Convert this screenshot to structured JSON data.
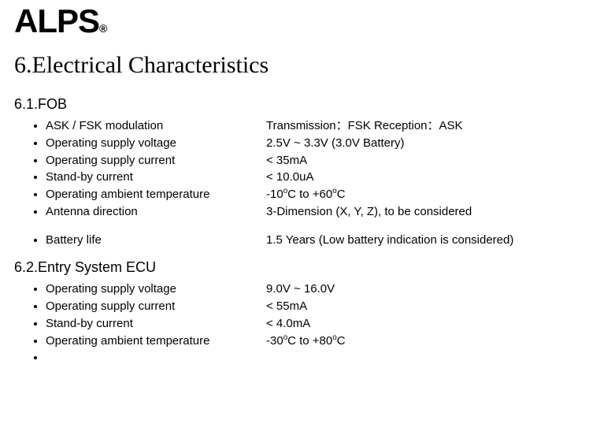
{
  "logo": {
    "text": "ALPS",
    "registered": "®"
  },
  "title": "6.Electrical Characteristics",
  "sections": [
    {
      "heading": "6.1.FOB",
      "items": [
        {
          "label": "ASK / FSK modulation",
          "value_pre": " Transmission：FSK  Reception：ASK",
          "gap": false,
          "temp": false
        },
        {
          "label": "Operating supply voltage",
          "value_pre": "2.5V ~ 3.3V (3.0V Battery)",
          "gap": false,
          "temp": false
        },
        {
          "label": "Operating supply current",
          "value_pre": "< 35mA",
          "gap": false,
          "temp": false
        },
        {
          "label": "Stand-by current",
          "value_pre": "< 10.0uA",
          "gap": false,
          "temp": false
        },
        {
          "label": "Operating ambient temperature",
          "value_pre": "-10",
          "value_mid": "C to +60",
          "value_post": "C",
          "gap": false,
          "temp": true
        },
        {
          "label": "Antenna direction",
          "value_pre": "3-Dimension (X, Y, Z), to be considered",
          "gap": false,
          "temp": false
        },
        {
          "label": "Battery life",
          "value_pre": "1.5 Years (Low battery indication is considered)",
          "gap": true,
          "temp": false
        }
      ]
    },
    {
      "heading": "6.2.Entry System ECU",
      "items": [
        {
          "label": "Operating supply voltage",
          "value_pre": "9.0V ~ 16.0V",
          "gap": false,
          "temp": false
        },
        {
          "label": "Operating supply current",
          "value_pre": "< 55mA",
          "gap": false,
          "temp": false
        },
        {
          "label": "Stand-by current",
          "value_pre": "< 4.0mA",
          "gap": false,
          "temp": false
        },
        {
          "label": "Operating ambient temperature",
          "value_pre": "-30",
          "value_mid": "C to +80",
          "value_post": "C",
          "gap": false,
          "temp": true
        },
        {
          "label": "",
          "value_pre": "",
          "gap": false,
          "temp": false
        }
      ]
    }
  ],
  "colors": {
    "text": "#000000",
    "background": "#ffffff"
  },
  "fonts": {
    "title_family": "Times New Roman",
    "body_family": "Arial",
    "title_size": 30,
    "subheading_size": 18,
    "body_size": 15
  }
}
